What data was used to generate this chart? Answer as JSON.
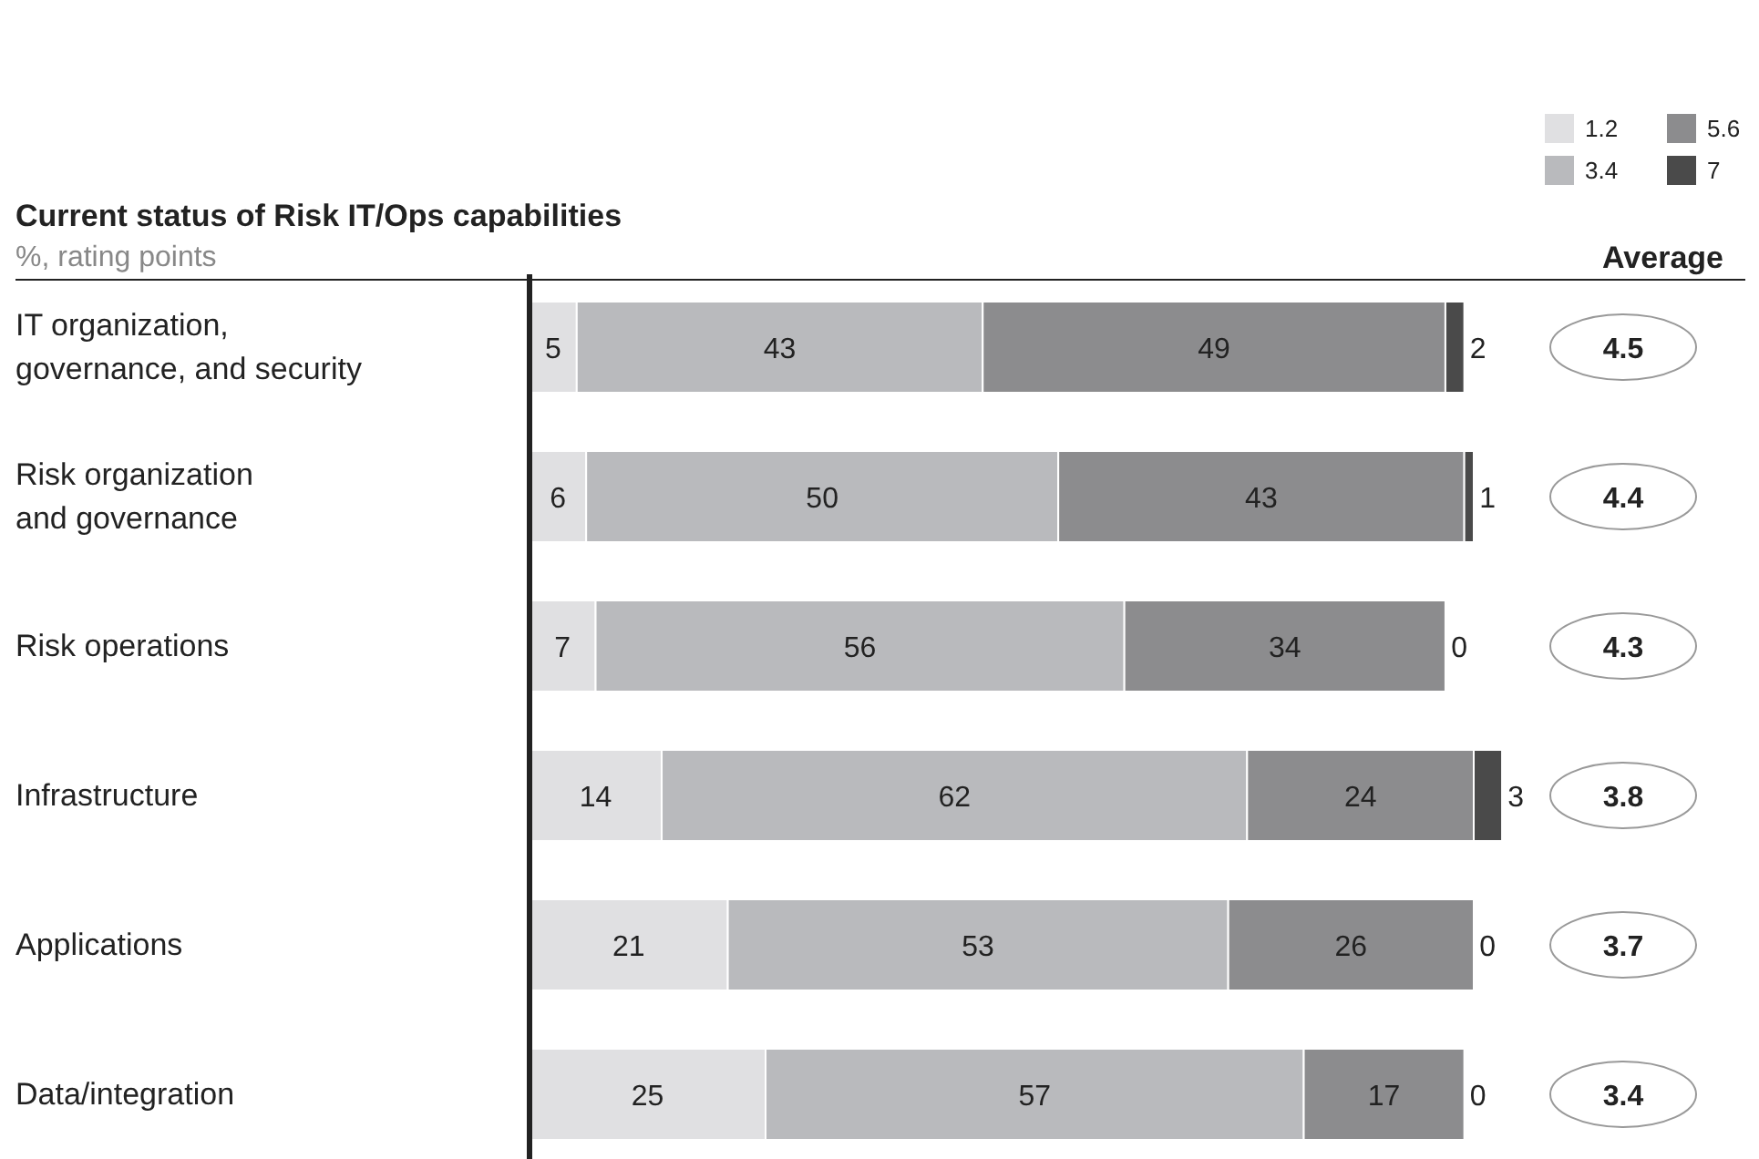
{
  "chart_data": {
    "type": "bar",
    "orientation": "horizontal",
    "stacked": true,
    "title": "Current status of Risk IT/Ops capabilities",
    "subtitle": "%, rating points",
    "categories": [
      "IT organization,\ngovernance, and security",
      "Risk organization\nand governance",
      "Risk operations",
      "Infrastructure",
      "Applications",
      "Data/integration"
    ],
    "series": [
      {
        "name": "1.2",
        "color": "#e0e0e2",
        "values": [
          5,
          6,
          7,
          14,
          21,
          25
        ]
      },
      {
        "name": "3.4",
        "color": "#b9babd",
        "values": [
          43,
          50,
          56,
          62,
          53,
          57
        ]
      },
      {
        "name": "5.6",
        "color": "#8c8c8e",
        "values": [
          49,
          43,
          34,
          24,
          26,
          17
        ]
      },
      {
        "name": "7",
        "color": "#4a4a4a",
        "values": [
          2,
          1,
          0,
          3,
          0,
          0
        ]
      }
    ],
    "data_labels": true,
    "legend": "top right",
    "grid": false,
    "annotations": [
      "Average",
      "4.5",
      "4.4",
      "4.3",
      "3.8",
      "3.7",
      "3.4"
    ]
  }
}
